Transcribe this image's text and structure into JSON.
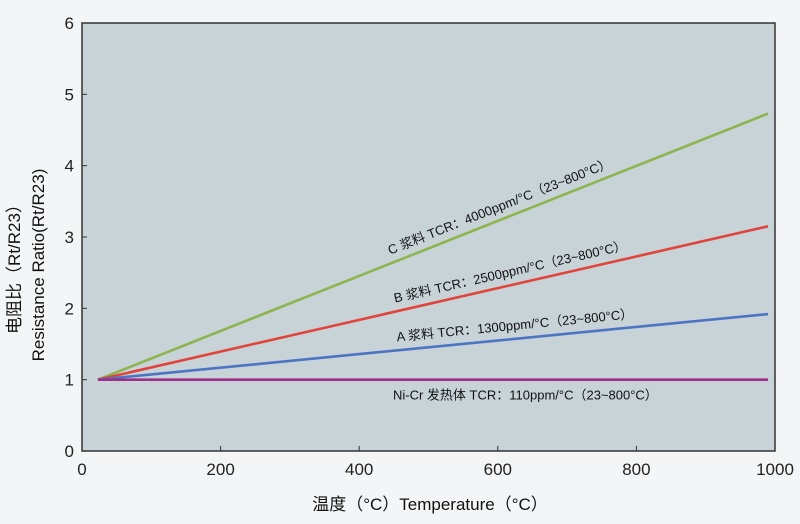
{
  "chart_data": {
    "type": "line",
    "title": "",
    "xlabel": "温度（°C）Temperature（°C）",
    "ylabel_zh": "电阻比（Rt/R23）",
    "ylabel_en": "Resistance Ratio(Rt/R23)",
    "xlim": [
      0,
      1000
    ],
    "ylim": [
      0,
      6
    ],
    "x_ticks": [
      "0",
      "200",
      "400",
      "600",
      "800",
      "1000"
    ],
    "y_ticks": [
      "0",
      "1",
      "2",
      "3",
      "4",
      "5",
      "6"
    ],
    "grid": false,
    "plot_background": "#c8d3d8",
    "series": [
      {
        "name": "C 浆料 TCR：4000ppm/°C（23~800°C）",
        "color": "#8db44e",
        "x": [
          23,
          990
        ],
        "y": [
          1.0,
          4.73
        ]
      },
      {
        "name": "B 浆料 TCR：2500ppm/°C（23~800°C）",
        "color": "#e0443b",
        "x": [
          23,
          990
        ],
        "y": [
          1.0,
          3.15
        ]
      },
      {
        "name": "A 浆料 TCR：1300ppm/°C（23~800°C）",
        "color": "#4d74c2",
        "x": [
          23,
          990
        ],
        "y": [
          1.0,
          1.92
        ]
      },
      {
        "name": "Ni-Cr 发热体 TCR：110ppm/°C（23~800°C）",
        "color": "#9c2f88",
        "x": [
          23,
          990
        ],
        "y": [
          1.0,
          1.0
        ]
      }
    ]
  }
}
